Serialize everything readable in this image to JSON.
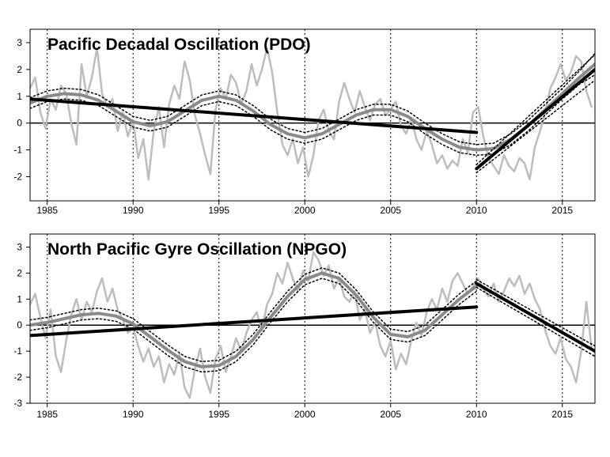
{
  "chart_data": [
    {
      "type": "line",
      "title": "Pacific Decadal Oscillation (PDO)",
      "xlabel": "",
      "ylabel": "",
      "xlim": [
        1984.0,
        2016.9
      ],
      "ylim": [
        -2.9,
        3.5
      ],
      "x_ticks": [
        "1985",
        "1990",
        "1995",
        "2000",
        "2005",
        "2010",
        "2015"
      ],
      "y_ticks": [
        "-2",
        "-1",
        "0",
        "1",
        "2",
        "3"
      ],
      "reference_lines_x": [
        1985,
        1990,
        1995,
        2000,
        2005,
        2010,
        2015
      ],
      "reference_line_y": 0,
      "grid": false,
      "colors": {
        "monthly": "#bdbdbd",
        "smooth": "#8a8a8a",
        "trend": "#000000",
        "ci": "#000000"
      },
      "series": [
        {
          "x": [
            1984.0,
            1984.3,
            1984.6,
            1984.9,
            1985.2,
            1985.5,
            1985.8,
            1986.1,
            1986.4,
            1986.7,
            1987.0,
            1987.3,
            1987.6,
            1987.9,
            1988.2,
            1988.5,
            1988.8,
            1989.1,
            1989.4,
            1989.7,
            1990.0,
            1990.3,
            1990.6,
            1990.9,
            1991.2,
            1991.5,
            1991.8,
            1992.1,
            1992.4,
            1992.7,
            1993.0,
            1993.3,
            1993.6,
            1993.9,
            1994.2,
            1994.5,
            1994.8,
            1995.1,
            1995.4,
            1995.7,
            1996.0,
            1996.3,
            1996.6,
            1996.9,
            1997.2,
            1997.5,
            1997.8,
            1998.1,
            1998.4,
            1998.7,
            1999.0,
            1999.3,
            1999.6,
            1999.9,
            2000.2,
            2000.5,
            2000.8,
            2001.1,
            2001.4,
            2001.7,
            2002.0,
            2002.3,
            2002.6,
            2002.9,
            2003.2,
            2003.5,
            2003.8,
            2004.1,
            2004.4,
            2004.7,
            2005.0,
            2005.3,
            2005.6,
            2005.9,
            2006.2,
            2006.5,
            2006.8,
            2007.1,
            2007.4,
            2007.7,
            2008.0,
            2008.3,
            2008.6,
            2008.9,
            2009.2,
            2009.5,
            2009.8,
            2010.1,
            2010.4,
            2010.7,
            2011.0,
            2011.3,
            2011.6,
            2011.9,
            2012.2,
            2012.5,
            2012.8,
            2013.1,
            2013.4,
            2013.7,
            2014.0,
            2014.3,
            2014.6,
            2014.9,
            2015.2,
            2015.5,
            2015.8,
            2016.1,
            2016.4,
            2016.7
          ],
          "y": [
            1.3,
            1.7,
            0.4,
            -0.2,
            0.9,
            0.5,
            1.4,
            1.1,
            0.0,
            -0.8,
            2.2,
            1.0,
            1.7,
            2.8,
            1.1,
            0.6,
            0.9,
            -0.3,
            0.4,
            -0.5,
            0.1,
            -1.3,
            -0.6,
            -2.1,
            -0.3,
            0.6,
            -0.9,
            0.7,
            1.4,
            0.9,
            2.3,
            1.6,
            0.3,
            -0.4,
            -1.2,
            -1.9,
            0.5,
            1.3,
            0.9,
            1.8,
            1.5,
            0.7,
            1.2,
            2.2,
            1.4,
            2.0,
            2.8,
            1.9,
            0.4,
            -0.8,
            -1.2,
            -0.6,
            -1.5,
            -0.9,
            -2.0,
            -1.2,
            0.1,
            0.5,
            -0.3,
            -0.6,
            0.8,
            1.5,
            0.9,
            0.4,
            1.2,
            0.6,
            0.1,
            0.7,
            0.9,
            0.3,
            0.5,
            0.8,
            -0.1,
            -0.4,
            0.2,
            -0.6,
            -1.0,
            -0.3,
            -0.8,
            -1.5,
            -1.2,
            -1.7,
            -1.4,
            -1.6,
            -0.6,
            -1.1,
            0.4,
            0.6,
            -0.5,
            -1.3,
            -1.6,
            -1.9,
            -1.2,
            -1.6,
            -1.8,
            -1.3,
            -1.5,
            -2.1,
            -0.9,
            -0.3,
            0.4,
            1.3,
            1.7,
            2.2,
            1.6,
            1.9,
            2.5,
            2.3,
            1.2,
            0.6
          ],
          "style": "monthly"
        },
        {
          "x": [
            1984.0,
            1985.0,
            1986.0,
            1987.0,
            1988.0,
            1989.0,
            1990.0,
            1991.0,
            1992.0,
            1993.0,
            1994.0,
            1995.0,
            1996.0,
            1997.0,
            1998.0,
            1999.0,
            2000.0,
            2001.0,
            2002.0,
            2003.0,
            2004.0,
            2005.0,
            2006.0,
            2007.0,
            2008.0,
            2009.0,
            2010.0,
            2011.0,
            2012.0,
            2013.0,
            2014.0,
            2015.0,
            2016.0,
            2016.9
          ],
          "y": [
            0.75,
            1.0,
            1.1,
            1.05,
            0.85,
            0.45,
            0.05,
            -0.1,
            0.05,
            0.45,
            0.85,
            1.0,
            0.85,
            0.45,
            -0.05,
            -0.4,
            -0.55,
            -0.4,
            -0.05,
            0.3,
            0.5,
            0.5,
            0.25,
            -0.2,
            -0.6,
            -0.9,
            -1.0,
            -0.95,
            -0.6,
            -0.1,
            0.5,
            1.1,
            1.7,
            2.2
          ],
          "style": "smooth"
        },
        {
          "x": [
            1984.0,
            1985.0,
            1986.0,
            1987.0,
            1988.0,
            1989.0,
            1990.0,
            1991.0,
            1992.0,
            1993.0,
            1994.0,
            1995.0,
            1996.0,
            1997.0,
            1998.0,
            1999.0,
            2000.0,
            2001.0,
            2002.0,
            2003.0,
            2004.0,
            2005.0,
            2006.0,
            2007.0,
            2008.0,
            2009.0,
            2010.0,
            2011.0,
            2012.0,
            2013.0,
            2014.0,
            2015.0,
            2016.0,
            2016.9
          ],
          "y": [
            0.95,
            1.2,
            1.3,
            1.25,
            1.05,
            0.65,
            0.25,
            0.1,
            0.25,
            0.65,
            1.05,
            1.2,
            1.05,
            0.65,
            0.15,
            -0.2,
            -0.35,
            -0.2,
            0.15,
            0.5,
            0.7,
            0.7,
            0.45,
            0.0,
            -0.4,
            -0.7,
            -0.8,
            -0.75,
            -0.4,
            0.1,
            0.7,
            1.3,
            1.95,
            2.6
          ],
          "style": "ci"
        },
        {
          "x": [
            1984.0,
            1985.0,
            1986.0,
            1987.0,
            1988.0,
            1989.0,
            1990.0,
            1991.0,
            1992.0,
            1993.0,
            1994.0,
            1995.0,
            1996.0,
            1997.0,
            1998.0,
            1999.0,
            2000.0,
            2001.0,
            2002.0,
            2003.0,
            2004.0,
            2005.0,
            2006.0,
            2007.0,
            2008.0,
            2009.0,
            2010.0,
            2011.0,
            2012.0,
            2013.0,
            2014.0,
            2015.0,
            2016.0,
            2016.9
          ],
          "y": [
            0.55,
            0.8,
            0.9,
            0.85,
            0.65,
            0.25,
            -0.15,
            -0.3,
            -0.15,
            0.25,
            0.65,
            0.8,
            0.65,
            0.25,
            -0.25,
            -0.6,
            -0.75,
            -0.6,
            -0.25,
            0.1,
            0.3,
            0.3,
            0.05,
            -0.4,
            -0.8,
            -1.1,
            -1.2,
            -1.15,
            -0.8,
            -0.3,
            0.3,
            0.9,
            1.45,
            1.8
          ],
          "style": "ci"
        },
        {
          "x": [
            1984.0,
            2010.0
          ],
          "y": [
            0.9,
            -0.35
          ],
          "style": "trend"
        },
        {
          "x": [
            2010.0,
            2016.9
          ],
          "y": [
            -1.7,
            2.0
          ],
          "style": "trend"
        },
        {
          "x": [
            2010.0,
            2016.9
          ],
          "y": [
            -1.55,
            2.55
          ],
          "style": "ci"
        },
        {
          "x": [
            2010.0,
            2016.9
          ],
          "y": [
            -1.85,
            1.6
          ],
          "style": "ci"
        }
      ]
    },
    {
      "type": "line",
      "title": "North Pacific Gyre Oscillation (NPGO)",
      "xlabel": "",
      "ylabel": "",
      "xlim": [
        1984.0,
        2016.9
      ],
      "ylim": [
        -3.0,
        3.5
      ],
      "x_ticks": [
        "1985",
        "1990",
        "1995",
        "2000",
        "2005",
        "2010",
        "2015"
      ],
      "y_ticks": [
        "-3",
        "-2",
        "-1",
        "0",
        "1",
        "2",
        "3"
      ],
      "reference_lines_x": [
        1985,
        1990,
        1995,
        2000,
        2005,
        2010,
        2015
      ],
      "reference_line_y": 0,
      "grid": false,
      "colors": {
        "monthly": "#bdbdbd",
        "smooth": "#8a8a8a",
        "trend": "#000000",
        "ci": "#000000"
      },
      "series": [
        {
          "x": [
            1984.0,
            1984.3,
            1984.6,
            1984.9,
            1985.2,
            1985.5,
            1985.8,
            1986.1,
            1986.4,
            1986.7,
            1987.0,
            1987.3,
            1987.6,
            1987.9,
            1988.2,
            1988.5,
            1988.8,
            1989.1,
            1989.4,
            1989.7,
            1990.0,
            1990.3,
            1990.6,
            1990.9,
            1991.2,
            1991.5,
            1991.8,
            1992.1,
            1992.4,
            1992.7,
            1993.0,
            1993.3,
            1993.6,
            1993.9,
            1994.2,
            1994.5,
            1994.8,
            1995.1,
            1995.4,
            1995.7,
            1996.0,
            1996.3,
            1996.6,
            1996.9,
            1997.2,
            1997.5,
            1997.8,
            1998.1,
            1998.4,
            1998.7,
            1999.0,
            1999.3,
            1999.6,
            1999.9,
            2000.2,
            2000.5,
            2000.8,
            2001.1,
            2001.4,
            2001.7,
            2002.0,
            2002.3,
            2002.6,
            2002.9,
            2003.2,
            2003.5,
            2003.8,
            2004.1,
            2004.4,
            2004.7,
            2005.0,
            2005.3,
            2005.6,
            2005.9,
            2006.2,
            2006.5,
            2006.8,
            2007.1,
            2007.4,
            2007.7,
            2008.0,
            2008.3,
            2008.6,
            2008.9,
            2009.2,
            2009.5,
            2009.8,
            2010.1,
            2010.4,
            2010.7,
            2011.0,
            2011.3,
            2011.6,
            2011.9,
            2012.2,
            2012.5,
            2012.8,
            2013.1,
            2013.4,
            2013.7,
            2014.0,
            2014.3,
            2014.6,
            2014.9,
            2015.2,
            2015.5,
            2015.8,
            2016.1,
            2016.4,
            2016.7
          ],
          "y": [
            0.8,
            1.2,
            0.3,
            -0.5,
            0.6,
            -1.2,
            -1.8,
            -0.6,
            0.4,
            1.0,
            0.2,
            0.9,
            0.5,
            1.3,
            1.8,
            0.9,
            1.4,
            0.6,
            0.2,
            -0.3,
            -0.1,
            -0.8,
            -1.4,
            -0.9,
            -1.6,
            -1.2,
            -2.2,
            -1.5,
            -1.9,
            -1.1,
            -2.4,
            -2.8,
            -1.7,
            -0.9,
            -2.0,
            -2.6,
            -1.3,
            -0.8,
            -1.8,
            -1.2,
            -0.5,
            -1.0,
            -0.3,
            0.2,
            0.5,
            -0.2,
            0.8,
            1.2,
            2.0,
            1.6,
            2.4,
            1.8,
            1.3,
            2.1,
            1.7,
            2.8,
            2.5,
            1.9,
            2.3,
            1.4,
            1.8,
            1.1,
            0.9,
            1.3,
            0.2,
            0.6,
            -0.3,
            0.1,
            -0.8,
            -1.2,
            -0.6,
            -1.7,
            -1.1,
            -1.5,
            -0.6,
            0.1,
            -0.4,
            0.5,
            1.0,
            0.6,
            1.4,
            0.9,
            1.7,
            2.0,
            1.6,
            1.2,
            1.5,
            1.8,
            1.4,
            1.1,
            1.6,
            0.9,
            1.3,
            1.8,
            1.5,
            1.9,
            1.2,
            1.6,
            1.0,
            0.6,
            -0.2,
            -0.8,
            -1.1,
            -0.5,
            -1.3,
            -1.6,
            -2.2,
            -1.0,
            0.9,
            -0.9
          ],
          "style": "monthly"
        },
        {
          "x": [
            1984.0,
            1985.0,
            1986.0,
            1987.0,
            1988.0,
            1989.0,
            1990.0,
            1991.0,
            1992.0,
            1993.0,
            1994.0,
            1995.0,
            1996.0,
            1997.0,
            1998.0,
            1999.0,
            2000.0,
            2001.0,
            2002.0,
            2003.0,
            2004.0,
            2005.0,
            2006.0,
            2007.0,
            2008.0,
            2009.0,
            2010.0
          ],
          "y": [
            0.0,
            0.1,
            0.25,
            0.4,
            0.45,
            0.35,
            0.05,
            -0.45,
            -0.95,
            -1.4,
            -1.6,
            -1.55,
            -1.2,
            -0.55,
            0.3,
            1.1,
            1.75,
            2.0,
            1.8,
            1.15,
            0.3,
            -0.35,
            -0.45,
            -0.2,
            0.4,
            1.0,
            1.5
          ],
          "style": "smooth"
        },
        {
          "x": [
            1984.0,
            1985.0,
            1986.0,
            1987.0,
            1988.0,
            1989.0,
            1990.0,
            1991.0,
            1992.0,
            1993.0,
            1994.0,
            1995.0,
            1996.0,
            1997.0,
            1998.0,
            1999.0,
            2000.0,
            2001.0,
            2002.0,
            2003.0,
            2004.0,
            2005.0,
            2006.0,
            2007.0,
            2008.0,
            2009.0,
            2010.0
          ],
          "y": [
            0.2,
            0.3,
            0.45,
            0.6,
            0.65,
            0.55,
            0.25,
            -0.25,
            -0.75,
            -1.2,
            -1.4,
            -1.35,
            -1.0,
            -0.35,
            0.5,
            1.3,
            1.95,
            2.2,
            2.0,
            1.35,
            0.5,
            -0.15,
            -0.25,
            0.0,
            0.6,
            1.2,
            1.7
          ],
          "style": "ci"
        },
        {
          "x": [
            1984.0,
            1985.0,
            1986.0,
            1987.0,
            1988.0,
            1989.0,
            1990.0,
            1991.0,
            1992.0,
            1993.0,
            1994.0,
            1995.0,
            1996.0,
            1997.0,
            1998.0,
            1999.0,
            2000.0,
            2001.0,
            2002.0,
            2003.0,
            2004.0,
            2005.0,
            2006.0,
            2007.0,
            2008.0,
            2009.0,
            2010.0
          ],
          "y": [
            -0.2,
            -0.1,
            0.05,
            0.2,
            0.25,
            0.15,
            -0.15,
            -0.65,
            -1.15,
            -1.6,
            -1.8,
            -1.75,
            -1.4,
            -0.75,
            0.1,
            0.9,
            1.55,
            1.8,
            1.6,
            0.95,
            0.1,
            -0.55,
            -0.65,
            -0.4,
            0.2,
            0.8,
            1.3
          ],
          "style": "ci"
        },
        {
          "x": [
            1984.0,
            2010.0
          ],
          "y": [
            -0.4,
            0.7
          ],
          "style": "trend"
        },
        {
          "x": [
            2010.0,
            2016.9
          ],
          "y": [
            1.6,
            -1.0
          ],
          "style": "trend"
        },
        {
          "x": [
            2010.0,
            2016.9
          ],
          "y": [
            1.75,
            -0.8
          ],
          "style": "ci"
        },
        {
          "x": [
            2010.0,
            2016.9
          ],
          "y": [
            1.45,
            -1.2
          ],
          "style": "ci"
        }
      ]
    }
  ]
}
